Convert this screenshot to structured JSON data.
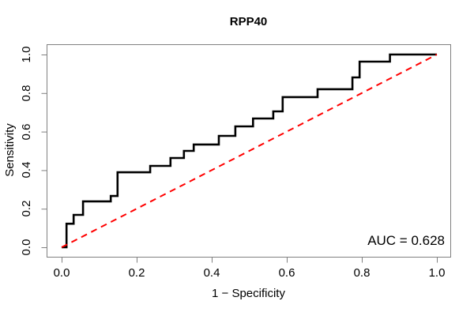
{
  "chart_data": {
    "type": "line",
    "subtype": "roc-curve",
    "title": "RPP40",
    "xlabel": "1 − Specificity",
    "ylabel": "Sensitivity",
    "xlim": [
      0,
      1
    ],
    "ylim": [
      0,
      1
    ],
    "grid": false,
    "legend": "none",
    "x_ticks": [
      0,
      0.2,
      0.4,
      0.6,
      0.8,
      1
    ],
    "x_tick_labels": [
      "0.0",
      "0.2",
      "0.4",
      "0.6",
      "0.8",
      "1.0"
    ],
    "y_ticks": [
      0,
      0.2,
      0.4,
      0.6,
      0.8,
      1
    ],
    "y_tick_labels": [
      "0.0",
      "0.2",
      "0.4",
      "0.6",
      "0.8",
      "1.0"
    ],
    "annotation": {
      "text": "AUC = 0.628"
    },
    "auc_value": 0.628,
    "colors": {
      "curve": "#000000",
      "diagonal": "#ff0000",
      "axis": "#808080",
      "text": "#000000",
      "background": "#ffffff"
    },
    "series": [
      {
        "name": "ROC curve",
        "type": "step",
        "color": "#000000",
        "line_width": 2.6,
        "dash": "solid",
        "points": [
          [
            0,
            0
          ],
          [
            0.013,
            0
          ],
          [
            0.013,
            0.122
          ],
          [
            0.032,
            0.122
          ],
          [
            0.032,
            0.168
          ],
          [
            0.057,
            0.168
          ],
          [
            0.057,
            0.238
          ],
          [
            0.131,
            0.238
          ],
          [
            0.131,
            0.266
          ],
          [
            0.149,
            0.266
          ],
          [
            0.149,
            0.389
          ],
          [
            0.236,
            0.389
          ],
          [
            0.236,
            0.422
          ],
          [
            0.29,
            0.422
          ],
          [
            0.29,
            0.463
          ],
          [
            0.326,
            0.463
          ],
          [
            0.326,
            0.5
          ],
          [
            0.352,
            0.5
          ],
          [
            0.352,
            0.533
          ],
          [
            0.419,
            0.533
          ],
          [
            0.419,
            0.578
          ],
          [
            0.463,
            0.578
          ],
          [
            0.463,
            0.627
          ],
          [
            0.51,
            0.627
          ],
          [
            0.51,
            0.668
          ],
          [
            0.564,
            0.668
          ],
          [
            0.564,
            0.705
          ],
          [
            0.589,
            0.705
          ],
          [
            0.589,
            0.779
          ],
          [
            0.682,
            0.779
          ],
          [
            0.682,
            0.82
          ],
          [
            0.775,
            0.82
          ],
          [
            0.775,
            0.881
          ],
          [
            0.794,
            0.881
          ],
          [
            0.794,
            0.963
          ],
          [
            0.875,
            0.963
          ],
          [
            0.875,
            1
          ],
          [
            1,
            1
          ]
        ]
      },
      {
        "name": "chance diagonal",
        "type": "line",
        "color": "#ff0000",
        "line_width": 2,
        "dash": "dashed",
        "points": [
          [
            0,
            0
          ],
          [
            1,
            1
          ]
        ]
      }
    ]
  }
}
